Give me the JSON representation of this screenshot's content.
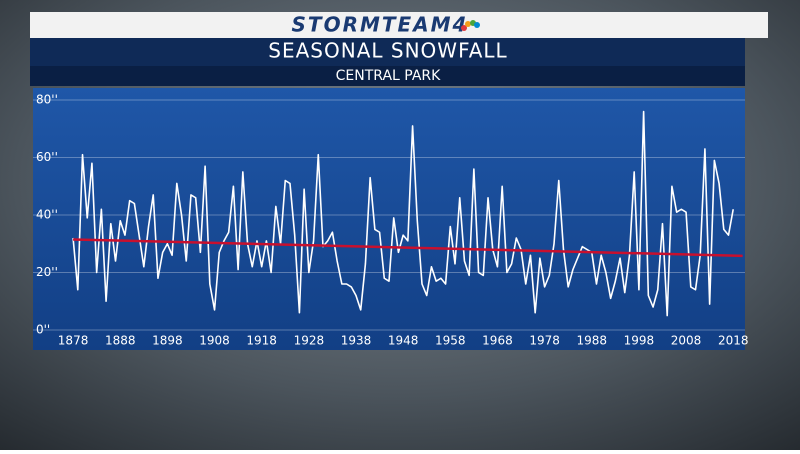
{
  "brand": "STORMTEAM4",
  "chart_data": {
    "type": "line",
    "title": "SEASONAL SNOWFALL",
    "subtitle": "CENTRAL PARK",
    "x": [
      1878,
      1879,
      1880,
      1881,
      1882,
      1883,
      1884,
      1885,
      1886,
      1887,
      1888,
      1889,
      1890,
      1891,
      1892,
      1893,
      1894,
      1895,
      1896,
      1897,
      1898,
      1899,
      1900,
      1901,
      1902,
      1903,
      1904,
      1905,
      1906,
      1907,
      1908,
      1909,
      1910,
      1911,
      1912,
      1913,
      1914,
      1915,
      1916,
      1917,
      1918,
      1919,
      1920,
      1921,
      1922,
      1923,
      1924,
      1925,
      1926,
      1927,
      1928,
      1929,
      1930,
      1931,
      1932,
      1933,
      1934,
      1935,
      1936,
      1937,
      1938,
      1939,
      1940,
      1941,
      1942,
      1943,
      1944,
      1945,
      1946,
      1947,
      1948,
      1949,
      1950,
      1951,
      1952,
      1953,
      1954,
      1955,
      1956,
      1957,
      1958,
      1959,
      1960,
      1961,
      1962,
      1963,
      1964,
      1965,
      1966,
      1967,
      1968,
      1969,
      1970,
      1971,
      1972,
      1973,
      1974,
      1975,
      1976,
      1977,
      1978,
      1979,
      1980,
      1981,
      1982,
      1983,
      1984,
      1985,
      1986,
      1987,
      1988,
      1989,
      1990,
      1991,
      1992,
      1993,
      1994,
      1995,
      1996,
      1997,
      1998,
      1999,
      2000,
      2001,
      2002,
      2003,
      2004,
      2005,
      2006,
      2007,
      2008,
      2009,
      2010,
      2011,
      2012,
      2013,
      2014,
      2015,
      2016,
      2017,
      2018
    ],
    "series": [
      {
        "color": "#ffffff",
        "values": [
          32,
          14,
          61,
          39,
          58,
          20,
          42,
          10,
          37,
          24,
          38,
          33,
          45,
          44,
          33,
          22,
          36,
          47,
          18,
          27,
          30,
          26,
          51,
          40,
          24,
          47,
          46,
          27,
          57,
          16,
          7,
          27,
          31,
          34,
          50,
          21,
          55,
          30,
          22,
          31,
          22,
          31,
          20,
          43,
          30,
          52,
          51,
          33,
          6,
          49,
          20,
          31,
          61,
          29,
          31,
          34,
          24,
          16,
          16,
          15,
          12,
          7,
          23,
          53,
          35,
          34,
          18,
          17,
          39,
          27,
          33,
          31,
          71,
          38,
          16,
          12,
          22,
          17,
          18,
          16,
          36,
          23,
          46,
          24,
          19,
          56,
          20,
          19,
          46,
          28,
          22,
          50,
          20,
          23,
          32,
          28,
          16,
          26,
          6,
          25,
          15,
          19,
          30,
          52,
          28,
          15,
          21,
          25,
          29,
          28,
          27,
          16,
          26,
          20,
          11,
          17,
          25,
          13,
          26,
          55,
          14,
          76,
          12,
          8,
          14,
          37,
          5,
          50,
          41,
          42,
          41,
          15,
          14,
          26,
          63,
          9,
          59,
          51,
          35,
          33,
          42
        ]
      }
    ],
    "trend": {
      "x": [
        1878,
        2020
      ],
      "values": [
        31.5,
        25.8
      ],
      "color": "#c8102e"
    },
    "xlim": [
      1869.5,
      2020.5
    ],
    "xticks": [
      1878,
      1888,
      1898,
      1908,
      1918,
      1928,
      1938,
      1948,
      1958,
      1968,
      1978,
      1988,
      1998,
      2008,
      2018
    ],
    "ylim": [
      0,
      80
    ],
    "yticks": [
      {
        "value": 0,
        "label": "0''"
      },
      {
        "value": 20,
        "label": "20''"
      },
      {
        "value": 40,
        "label": "40''"
      },
      {
        "value": 60,
        "label": "60''"
      },
      {
        "value": 80,
        "label": "80''"
      }
    ],
    "grid": true
  }
}
